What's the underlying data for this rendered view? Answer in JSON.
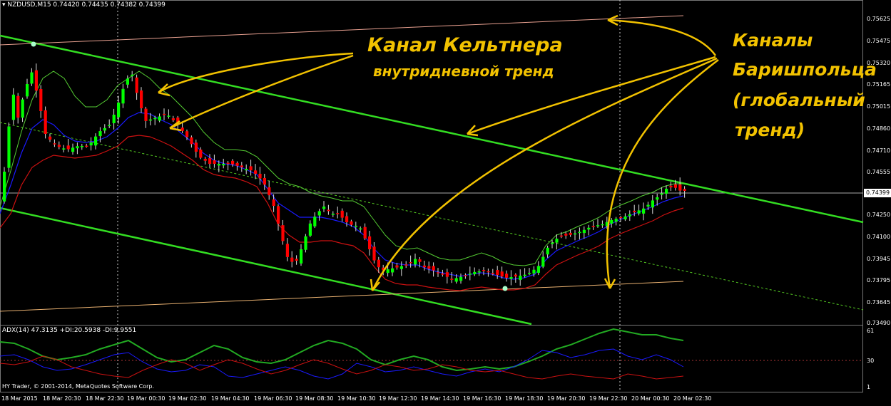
{
  "header": {
    "menu_icon": "triangle-down-icon",
    "symbol": "NZDUSD,M15",
    "ohlc": "0.74420 0.74435 0.74382 0.74399"
  },
  "indicator": {
    "header": "ADX(14) 47.3135 +DI:20.5938 -DI:9.9551",
    "levels": [
      "61",
      "30",
      "1"
    ]
  },
  "copyright": "HY Trader, © 2001-2014, MetaQuotes Software Corp.",
  "price_axis": {
    "labels": [
      "0.75625",
      "0.75475",
      "0.75320",
      "0.75165",
      "0.75015",
      "0.74860",
      "0.74710",
      "0.74555",
      "0.74250",
      "0.74100",
      "0.73945",
      "0.73795",
      "0.73645",
      "0.73490"
    ],
    "current_price": "0.74399"
  },
  "time_axis": {
    "labels": [
      "18 Mar 2015",
      "18 Mar 20:30",
      "18 Mar 22:30",
      "19 Mar 00:30",
      "19 Mar 02:30",
      "19 Mar 04:30",
      "19 Mar 06:30",
      "19 Mar 08:30",
      "19 Mar 10:30",
      "19 Mar 12:30",
      "19 Mar 14:30",
      "19 Mar 16:30",
      "19 Mar 18:30",
      "19 Mar 20:30",
      "19 Mar 22:30",
      "20 Mar 00:30",
      "20 Mar 02:30"
    ]
  },
  "annotations": {
    "keltner_title": "Канал Кельтнера",
    "keltner_sub": "внутридневной тренд",
    "barishpolets_l1": "Каналы",
    "barishpolets_l2": "Баришпольца",
    "barishpolets_l3": "(глобальный",
    "barishpolets_l4": "тренд)"
  },
  "colors": {
    "background": "#000000",
    "bull_candle": "#00ff00",
    "bear_candle": "#ff0000",
    "channel": "#33dd22",
    "annotation": "#f2c200",
    "adx_line": "#22aa22",
    "plus_di": "#1a1aff",
    "minus_di": "#cc1111"
  }
}
